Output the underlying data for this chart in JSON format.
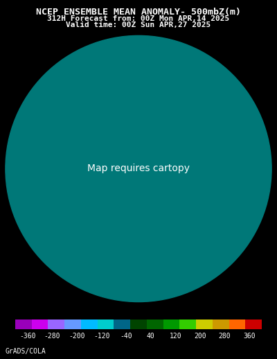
{
  "title_line1": "NCEP ENSEMBLE MEAN ANOMALY- 500mbZ(m)",
  "title_line2": "312H Forecast from: 00Z Mon APR,14 2025",
  "title_line3": "Valid time: 00Z Sun APR,27 2025",
  "credit": "GrADS/COLA",
  "background_color": "#000000",
  "colorbar_values": [
    -360,
    -280,
    -200,
    -120,
    -40,
    40,
    120,
    200,
    280,
    360
  ],
  "colorbar_colors": [
    "#9900bb",
    "#cc00ee",
    "#9966ff",
    "#6699ff",
    "#00bbff",
    "#00cccc",
    "#006688",
    "#004400",
    "#006600",
    "#009900",
    "#33cc00",
    "#cccc00",
    "#cc9900",
    "#ff6600",
    "#cc0000"
  ],
  "ocean_color": "#007878",
  "land_color": "#004d3d",
  "anomaly_light_green": "#228822",
  "anomaly_medium_green": "#006600",
  "anomaly_dark_green": "#003300",
  "anomaly_teal": "#006666",
  "contour_color_gray": "#aaaaaa",
  "contour_color_black": "#000000",
  "title_fontsize": 9.5,
  "subtitle_fontsize": 8.0,
  "credit_fontsize": 7.0
}
